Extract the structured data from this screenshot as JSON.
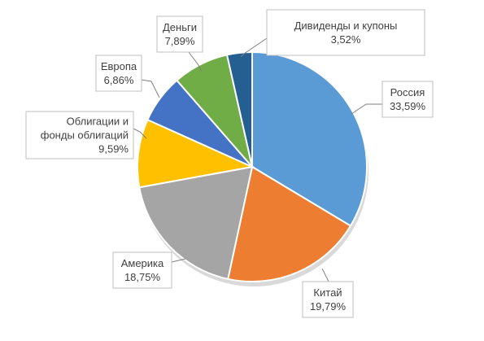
{
  "chart_data": {
    "type": "pie",
    "title": "",
    "slices": [
      {
        "name": "Россия",
        "value": 33.59,
        "label": "33,59%",
        "color": "#5b9bd5"
      },
      {
        "name": "Китай",
        "value": 19.79,
        "label": "19,79%",
        "color": "#ed7d31"
      },
      {
        "name": "Америка",
        "value": 18.75,
        "label": "18,75%",
        "color": "#a5a5a5"
      },
      {
        "name": "Облигации и фонды облигаций",
        "name_lines": [
          "Облигации и",
          "фонды облигаций"
        ],
        "value": 9.59,
        "label": "9,59%",
        "color": "#ffc000"
      },
      {
        "name": "Европа",
        "value": 6.86,
        "label": "6,86%",
        "color": "#4472c4"
      },
      {
        "name": "Деньги",
        "value": 7.89,
        "label": "7,89%",
        "color": "#70ad47"
      },
      {
        "name": "Дивиденды и купоны",
        "value": 3.52,
        "label": "3,52%",
        "color": "#255e91"
      }
    ]
  }
}
